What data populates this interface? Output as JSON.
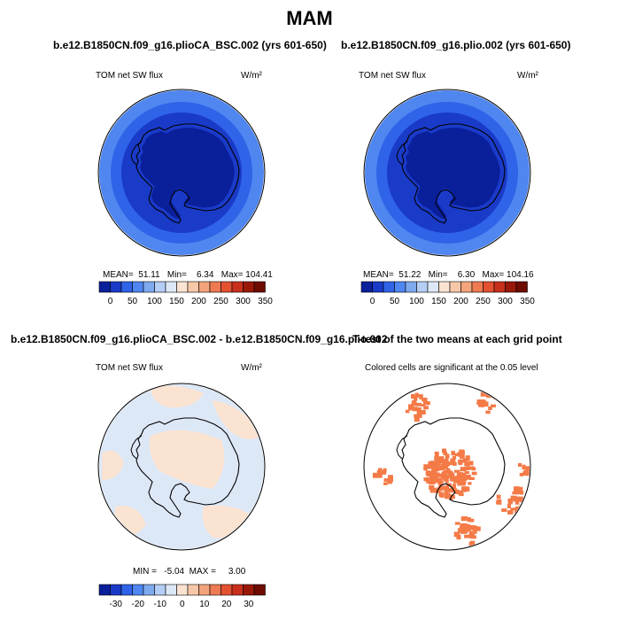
{
  "title": "MAM",
  "colors": {
    "abs_scale": [
      "#0a1f9a",
      "#1a3ac8",
      "#2f63e8",
      "#4f86f0",
      "#7faaf0",
      "#b5cef5",
      "#dde8f7",
      "#fbe3d2",
      "#f7c8a8",
      "#f3a47c",
      "#ee7a52",
      "#e35131",
      "#c8301c",
      "#9a1808",
      "#6e0c00"
    ],
    "diff_scale": [
      "#0a1f9a",
      "#1a3ac8",
      "#2f63e8",
      "#4f86f0",
      "#7faaf0",
      "#b5cef5",
      "#dde8f7",
      "#fbe3d2",
      "#f7c8a8",
      "#f3a47c",
      "#ee7a52",
      "#e35131",
      "#c8301c",
      "#9a1808",
      "#6e0c00"
    ],
    "significant_cell": "#f47a47"
  },
  "panels": {
    "top_left": {
      "title": "b.e12.B1850CN.f09_g16.plioCA_BSC.002 (yrs 601-650)",
      "var_label": "TOM net SW flux",
      "units": "W/m²",
      "stats": "MEAN=  51.11   Min=    6.34   Max= 104.41"
    },
    "top_right": {
      "title": "b.e12.B1850CN.f09_g16.plio.002 (yrs 601-650)",
      "var_label": "TOM net SW flux",
      "units": "W/m²",
      "stats": "MEAN=  51.22   Min=    6.30   Max= 104.16"
    },
    "bottom_left": {
      "title": "b.e12.B1850CN.f09_g16.plioCA_BSC.002 - b.e12.B1850CN.f09_g16.plio.002",
      "var_label": "TOM net SW flux",
      "units": "W/m²",
      "stats": "MIN =   -5.04  MAX =     3.00"
    },
    "bottom_right": {
      "title": "T-test of the two means at each grid point",
      "caption": "Colored cells are significant at the 0.05 level"
    }
  },
  "chart_data": [
    {
      "type": "heatmap",
      "projection": "south-polar-stereographic",
      "title": "b.e12.B1850CN.f09_g16.plioCA_BSC.002 (yrs 601-650)",
      "variable": "TOM net SW flux",
      "units": "W/m²",
      "mean": 51.11,
      "min": 6.34,
      "max": 104.41,
      "colorbar_ticks": [
        0,
        50,
        100,
        150,
        200,
        250,
        300,
        350
      ]
    },
    {
      "type": "heatmap",
      "projection": "south-polar-stereographic",
      "title": "b.e12.B1850CN.f09_g16.plio.002 (yrs 601-650)",
      "variable": "TOM net SW flux",
      "units": "W/m²",
      "mean": 51.22,
      "min": 6.3,
      "max": 104.16,
      "colorbar_ticks": [
        0,
        50,
        100,
        150,
        200,
        250,
        300,
        350
      ]
    },
    {
      "type": "heatmap",
      "projection": "south-polar-stereographic",
      "title": "b.e12.B1850CN.f09_g16.plioCA_BSC.002 - b.e12.B1850CN.f09_g16.plio.002",
      "variable": "TOM net SW flux",
      "units": "W/m²",
      "min": -5.04,
      "max": 3.0,
      "colorbar_ticks": [
        -30,
        -20,
        -10,
        0,
        10,
        20,
        30
      ]
    },
    {
      "type": "heatmap",
      "projection": "south-polar-stereographic",
      "title": "T-test of the two means at each grid point",
      "caption": "Colored cells are significant at the 0.05 level",
      "significance_level": 0.05
    }
  ]
}
